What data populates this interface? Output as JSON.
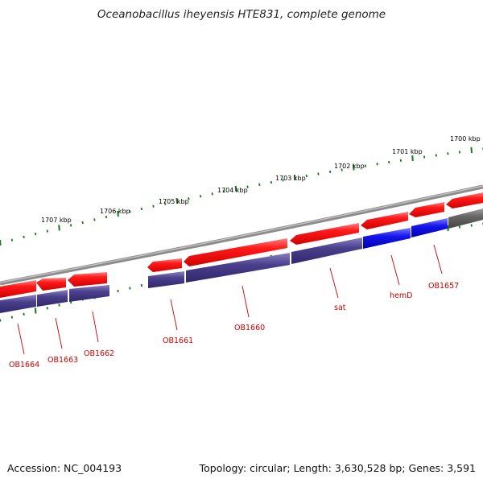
{
  "title": "Oceanobacillus iheyensis HTE831, complete genome",
  "accession": "Accession: NC_004193",
  "topology": "Topology: circular; Length: 3,630,528 bp; Genes: 3,591",
  "colors": {
    "backbone": "#888888",
    "tick": "#1a7a1a",
    "forward_gene": "#ff1010",
    "reverse_gene": "#4a3f8c",
    "highlight_gene": "#1515ee",
    "other_gene": "#666666",
    "label": "#cc0000"
  },
  "kbp_labels": [
    "1700 kbp",
    "1701 kbp",
    "1702 kbp",
    "1703 kbp",
    "1704 kbp",
    "1705 kbp",
    "1706 kbp",
    "1707 kbp"
  ],
  "gene_labels": [
    "OB1657",
    "hemD",
    "sat",
    "OB1660",
    "OB1661",
    "OB1662",
    "OB1663",
    "OB1664"
  ]
}
